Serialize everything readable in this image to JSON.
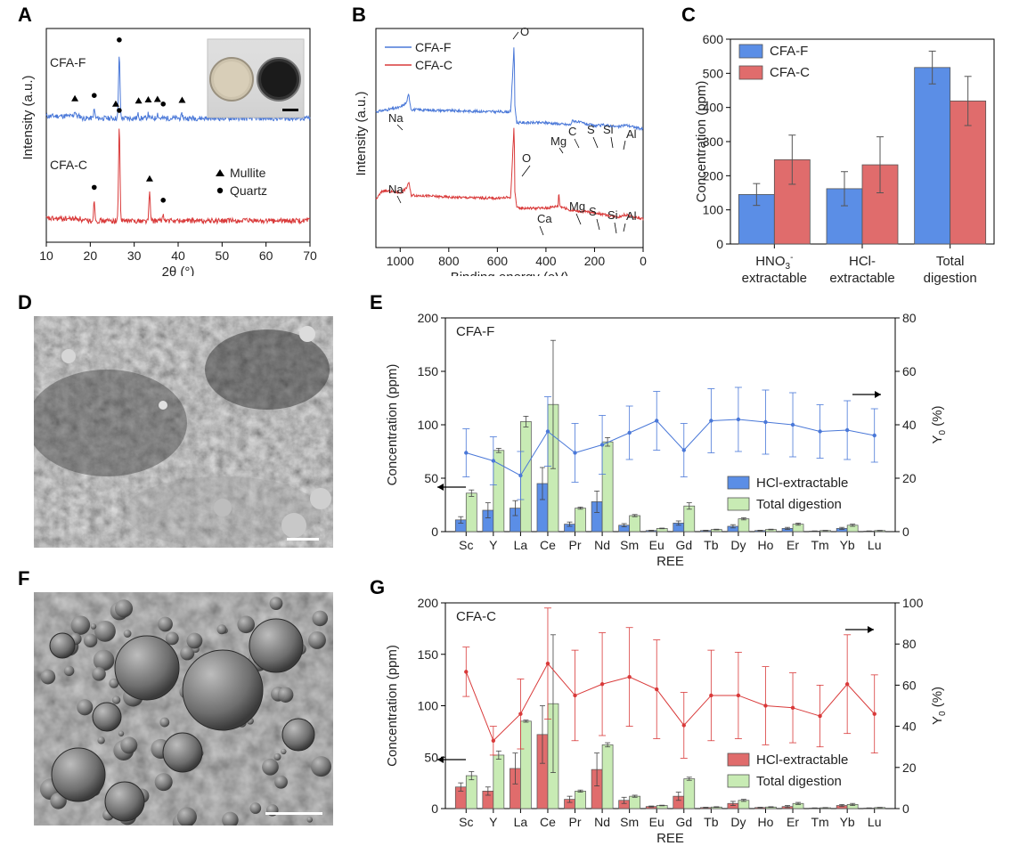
{
  "colors": {
    "blue_line": "#4a78d8",
    "red_line": "#d93a3a",
    "blue_bar": "#5b8ee6",
    "red_bar": "#e06c6c",
    "green_bar": "#c8ebb4",
    "edge": "#333333"
  },
  "labels": {
    "A": "A",
    "B": "B",
    "C": "C",
    "D": "D",
    "E": "E",
    "F": "F",
    "G": "G"
  },
  "chart_data": [
    {
      "id": "A",
      "type": "line",
      "title": "",
      "xlabel": "2θ (°)",
      "ylabel": "Intensity (a.u.)",
      "xlim": [
        10,
        70
      ],
      "xticks": [
        10,
        20,
        30,
        40,
        50,
        60,
        70
      ],
      "series": [
        {
          "name": "CFA-F",
          "color": "blue",
          "baseline_au": 0.58,
          "noise_au": 0.012,
          "peaks": [
            [
              16.5,
              0.025
            ],
            [
              20.9,
              0.04
            ],
            [
              26.6,
              0.3
            ],
            [
              30.9,
              0.018
            ],
            [
              33.2,
              0.02
            ],
            [
              35.3,
              0.022
            ],
            [
              40.9,
              0.018
            ]
          ]
        },
        {
          "name": "CFA-C",
          "color": "red",
          "baseline_au": 0.1,
          "noise_au": 0.012,
          "peaks": [
            [
              20.9,
              0.09
            ],
            [
              26.6,
              0.45
            ],
            [
              33.5,
              0.13
            ],
            [
              36.6,
              0.03
            ]
          ]
        }
      ],
      "annotations": [
        {
          "text": "CFA-F"
        },
        {
          "text": "CFA-C"
        }
      ],
      "legend": [
        {
          "marker": "▲",
          "label": "Mullite"
        },
        {
          "marker": "●",
          "label": "Quartz"
        }
      ],
      "markers": [
        {
          "series": "CFA-F",
          "symbol": "triangle",
          "x": 16.5
        },
        {
          "series": "CFA-F",
          "symbol": "circle",
          "x": 20.9
        },
        {
          "series": "CFA-F",
          "symbol": "triangle",
          "x": 25.8
        },
        {
          "series": "CFA-F",
          "symbol": "circle",
          "x": 26.6
        },
        {
          "series": "CFA-F",
          "symbol": "triangle",
          "x": 31.0
        },
        {
          "series": "CFA-F",
          "symbol": "triangle",
          "x": 33.2
        },
        {
          "series": "CFA-F",
          "symbol": "triangle",
          "x": 35.3
        },
        {
          "series": "CFA-F",
          "symbol": "circle",
          "x": 36.6
        },
        {
          "series": "CFA-F",
          "symbol": "triangle",
          "x": 40.9
        },
        {
          "series": "CFA-C",
          "symbol": "circle",
          "x": 20.9
        },
        {
          "series": "CFA-C",
          "symbol": "circle",
          "x": 26.6
        },
        {
          "series": "CFA-C",
          "symbol": "triangle",
          "x": 33.5
        },
        {
          "series": "CFA-C",
          "symbol": "circle",
          "x": 36.6
        }
      ]
    },
    {
      "id": "B",
      "type": "line",
      "title": "",
      "xlabel": "Binding energy (eV)",
      "ylabel": "Intensity (a.u.)",
      "xlim": [
        1100,
        0
      ],
      "xticks": [
        1000,
        800,
        600,
        400,
        200,
        0
      ],
      "series": [
        {
          "name": "CFA-F",
          "color": "blue",
          "baseline_au": 0.6,
          "noise_au": 0.006,
          "points": [
            [
              1100,
              0.62
            ],
            [
              1000,
              0.64
            ],
            [
              975,
              0.66
            ],
            [
              965,
              0.7
            ],
            [
              955,
              0.63
            ],
            [
              800,
              0.625
            ],
            [
              600,
              0.62
            ],
            [
              545,
              0.62
            ],
            [
              531,
              0.93
            ],
            [
              528,
              0.65
            ],
            [
              520,
              0.57
            ],
            [
              400,
              0.57
            ],
            [
              300,
              0.56
            ],
            [
              290,
              0.58
            ],
            [
              200,
              0.555
            ],
            [
              160,
              0.56
            ],
            [
              100,
              0.55
            ],
            [
              75,
              0.56
            ],
            [
              0,
              0.54
            ]
          ]
        },
        {
          "name": "CFA-C",
          "color": "red",
          "baseline_au": 0.2,
          "noise_au": 0.006,
          "points": [
            [
              1100,
              0.22
            ],
            [
              1072,
              0.26
            ],
            [
              1000,
              0.25
            ],
            [
              975,
              0.27
            ],
            [
              965,
              0.3
            ],
            [
              955,
              0.24
            ],
            [
              800,
              0.23
            ],
            [
              600,
              0.225
            ],
            [
              545,
              0.23
            ],
            [
              531,
              0.57
            ],
            [
              528,
              0.26
            ],
            [
              520,
              0.18
            ],
            [
              400,
              0.18
            ],
            [
              350,
              0.19
            ],
            [
              347,
              0.26
            ],
            [
              343,
              0.19
            ],
            [
              300,
              0.17
            ],
            [
              200,
              0.16
            ],
            [
              160,
              0.15
            ],
            [
              100,
              0.14
            ],
            [
              75,
              0.15
            ],
            [
              0,
              0.13
            ]
          ]
        }
      ],
      "legend": [
        {
          "label": "CFA-F",
          "color": "blue"
        },
        {
          "label": "CFA-C",
          "color": "red"
        }
      ],
      "peak_labels": [
        {
          "text": "Na",
          "series": "CFA-F"
        },
        {
          "text": "O",
          "series": "CFA-F"
        },
        {
          "text": "Mg",
          "series": "CFA-F"
        },
        {
          "text": "C",
          "series": "CFA-F"
        },
        {
          "text": "S",
          "series": "CFA-F"
        },
        {
          "text": "Si",
          "series": "CFA-F"
        },
        {
          "text": "Al",
          "series": "CFA-F"
        },
        {
          "text": "Na",
          "series": "CFA-C"
        },
        {
          "text": "O",
          "series": "CFA-C"
        },
        {
          "text": "Ca",
          "series": "CFA-C"
        },
        {
          "text": "Mg",
          "series": "CFA-C"
        },
        {
          "text": "S",
          "series": "CFA-C"
        },
        {
          "text": "Si",
          "series": "CFA-C"
        },
        {
          "text": "Al",
          "series": "CFA-C"
        }
      ]
    },
    {
      "id": "C",
      "type": "bar",
      "title": "",
      "xlabel": "",
      "ylabel": "Concentration (ppm)",
      "ylim": [
        0,
        600
      ],
      "yticks": [
        0,
        100,
        200,
        300,
        400,
        500,
        600
      ],
      "categories": [
        {
          "line1": "HNO",
          "sub": "3",
          "sup": "-",
          "line2": "extractable"
        },
        {
          "line1": "HCl-",
          "sub": "",
          "sup": "",
          "line2": "extractable"
        },
        {
          "line1": "Total",
          "sub": "",
          "sup": "",
          "line2": "digestion"
        }
      ],
      "series": [
        {
          "name": "CFA-F",
          "color": "blue",
          "values": [
            145,
            162,
            517
          ],
          "errors": [
            32,
            50,
            48
          ]
        },
        {
          "name": "CFA-C",
          "color": "red",
          "values": [
            247,
            232,
            419
          ],
          "errors": [
            72,
            82,
            72
          ]
        }
      ]
    },
    {
      "id": "E",
      "type": "bar",
      "title": "CFA-F",
      "xlabel": "REE",
      "ylabel": "Concentration (ppm)",
      "y2label": "Y",
      "y2label_sub": "0",
      "y2label_unit": " (%)",
      "ylim": [
        0,
        200
      ],
      "yticks": [
        0,
        50,
        100,
        150,
        200
      ],
      "y2lim": [
        0,
        80
      ],
      "y2ticks": [
        0,
        20,
        40,
        60,
        80
      ],
      "categories": [
        "Sc",
        "Y",
        "La",
        "Ce",
        "Pr",
        "Nd",
        "Sm",
        "Eu",
        "Gd",
        "Tb",
        "Dy",
        "Ho",
        "Er",
        "Tm",
        "Yb",
        "Lu"
      ],
      "series": [
        {
          "name": "HCl-extractable",
          "color": "blue",
          "values": [
            11,
            20,
            22,
            45,
            7,
            28,
            6,
            1,
            8,
            1,
            5,
            1,
            3,
            0.5,
            3,
            0.5
          ],
          "errors": [
            3,
            7,
            7,
            15,
            2,
            10,
            1.5,
            0.3,
            2,
            0.3,
            1.5,
            0.3,
            1,
            0.2,
            1,
            0.2
          ]
        },
        {
          "name": "Total digestion",
          "color": "green",
          "values": [
            36,
            76,
            103,
            119,
            22,
            84,
            15,
            3,
            24,
            2,
            12,
            2,
            7,
            1,
            6,
            1
          ],
          "errors": [
            3,
            2,
            5,
            60,
            1,
            4,
            1,
            0.3,
            3,
            0.3,
            1,
            0.3,
            1,
            0.2,
            1,
            0.2
          ]
        },
        {
          "name": "Y0",
          "axis": "right",
          "type": "line",
          "color": "blue",
          "values": [
            29.5,
            26.5,
            21,
            37.5,
            29.5,
            32.5,
            37,
            41.5,
            30.5,
            41.5,
            42,
            41,
            40,
            37.5,
            38,
            36
          ],
          "errors": [
            9,
            9,
            9,
            13,
            11,
            11,
            10,
            11,
            10,
            12,
            12,
            12,
            12,
            10,
            11,
            10
          ]
        }
      ],
      "legend": [
        {
          "label": "HCl-extractable",
          "color": "blue"
        },
        {
          "label": "Total digestion",
          "color": "green"
        }
      ]
    },
    {
      "id": "G",
      "type": "bar",
      "title": "CFA-C",
      "xlabel": "REE",
      "ylabel": "Concentration (ppm)",
      "y2label": "Y",
      "y2label_sub": "0",
      "y2label_unit": " (%)",
      "ylim": [
        0,
        200
      ],
      "yticks": [
        0,
        50,
        100,
        150,
        200
      ],
      "y2lim": [
        0,
        100
      ],
      "y2ticks": [
        0,
        20,
        40,
        60,
        80,
        100
      ],
      "categories": [
        "Sc",
        "Y",
        "La",
        "Ce",
        "Pr",
        "Nd",
        "Sm",
        "Eu",
        "Gd",
        "Tb",
        "Dy",
        "Ho",
        "Er",
        "Tm",
        "Yb",
        "Lu"
      ],
      "series": [
        {
          "name": "HCl-extractable",
          "color": "red",
          "values": [
            21,
            17,
            39,
            72,
            9,
            38,
            8,
            2,
            12,
            1,
            5,
            1,
            2,
            0.5,
            3,
            0.5
          ],
          "errors": [
            4,
            4,
            15,
            28,
            3,
            16,
            3,
            0.5,
            4,
            0.3,
            2,
            0.3,
            1,
            0.2,
            1,
            0.2
          ]
        },
        {
          "name": "Total digestion",
          "color": "green",
          "values": [
            32,
            52,
            85,
            102,
            17,
            62,
            12,
            3,
            29,
            1.5,
            8,
            1.5,
            5,
            0.8,
            4,
            1
          ],
          "errors": [
            4,
            4,
            1,
            67,
            1,
            2,
            1,
            0.3,
            1.5,
            0.3,
            1,
            0.3,
            1,
            0.2,
            1,
            0.2
          ]
        },
        {
          "name": "Y0",
          "axis": "right",
          "type": "line",
          "color": "red",
          "values": [
            66.5,
            33,
            46,
            70.5,
            55,
            60.5,
            64,
            58,
            40.5,
            55,
            55,
            50,
            49,
            45,
            60.5,
            46
          ],
          "errors": [
            12,
            7,
            17,
            27,
            22,
            25,
            24,
            24,
            16,
            22,
            21,
            19,
            17,
            15,
            24,
            19
          ]
        }
      ],
      "legend": [
        {
          "label": "HCl-extractable",
          "color": "red"
        },
        {
          "label": "Total digestion",
          "color": "green"
        }
      ]
    }
  ]
}
